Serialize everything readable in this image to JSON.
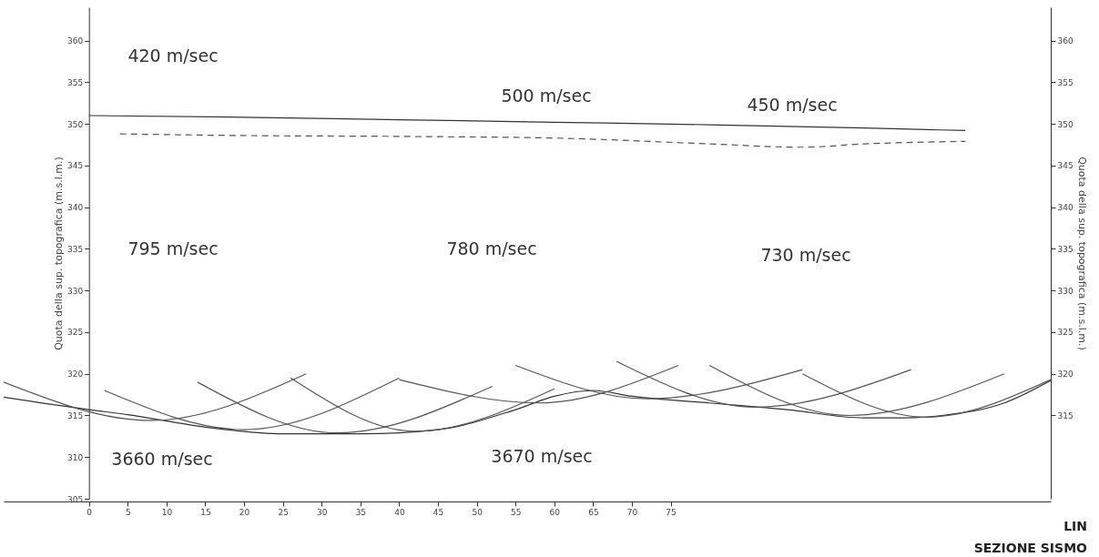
{
  "chart_data": {
    "type": "line",
    "ylabel": "Quota della sup. topografica (m.s.l.m.)",
    "y2label": "Quota della sup. topografica (m.s.l.m.)",
    "xlim": [
      -11,
      124
    ],
    "xticks": [
      0,
      5,
      10,
      15,
      20,
      25,
      30,
      35,
      40,
      45,
      50,
      55,
      60,
      65,
      70,
      75
    ],
    "ylim": [
      305,
      364
    ],
    "yticks": [
      305,
      310,
      315,
      320,
      325,
      330,
      335,
      340,
      345,
      350,
      355,
      360
    ],
    "y2lim": [
      305,
      364
    ],
    "y2ticks": [
      315,
      320,
      325,
      330,
      335,
      340,
      345,
      350,
      355,
      360
    ],
    "grid": false,
    "marker": "none",
    "series": [
      {
        "color": "#333333",
        "line_style": "solid",
        "x": [
          0,
          20,
          40,
          60,
          80,
          100,
          113
        ],
        "values": [
          351,
          350.8,
          350.5,
          350.2,
          349.9,
          349.5,
          349.2
        ]
      },
      {
        "color": "#555555",
        "line_style": "dashed",
        "x": [
          4,
          20,
          40,
          60,
          80,
          92,
          100,
          113
        ],
        "values": [
          348.8,
          348.6,
          348.5,
          348.3,
          347.6,
          347.2,
          347.6,
          347.9
        ]
      },
      {
        "color": "#333333",
        "line_style": "solid",
        "x": [
          -11,
          0,
          5,
          15,
          25,
          35,
          45,
          55,
          60,
          65,
          70,
          80,
          90,
          100,
          105,
          110,
          118,
          124
        ],
        "values": [
          317.2,
          315.7,
          315.1,
          313.6,
          312.8,
          312.8,
          313.3,
          315.7,
          317.3,
          318,
          317.3,
          316.5,
          315.7,
          314.7,
          314.7,
          315,
          316.5,
          319.2
        ]
      },
      {
        "color": "#555555",
        "line_style": "solid",
        "x": [
          -11,
          8,
          28
        ],
        "values": [
          319,
          314.4,
          320
        ]
      },
      {
        "color": "#555555",
        "line_style": "solid",
        "x": [
          2,
          20,
          40
        ],
        "values": [
          318,
          313.3,
          319.5
        ]
      },
      {
        "color": "#555555",
        "line_style": "solid",
        "x": [
          14,
          32,
          52
        ],
        "values": [
          319,
          312.9,
          318.5
        ]
      },
      {
        "color": "#555555",
        "line_style": "solid",
        "x": [
          26,
          42,
          60
        ],
        "values": [
          319.5,
          313.1,
          318.2
        ]
      },
      {
        "color": "#555555",
        "line_style": "solid",
        "x": [
          40,
          58,
          76
        ],
        "values": [
          319.3,
          316.5,
          321
        ]
      },
      {
        "color": "#555555",
        "line_style": "solid",
        "x": [
          55,
          72,
          92
        ],
        "values": [
          321,
          317,
          320.5
        ]
      },
      {
        "color": "#555555",
        "line_style": "solid",
        "x": [
          68,
          86,
          106
        ],
        "values": [
          321.5,
          316,
          320.5
        ]
      },
      {
        "color": "#555555",
        "line_style": "solid",
        "x": [
          80,
          98,
          118
        ],
        "values": [
          321,
          315,
          320
        ]
      },
      {
        "color": "#555555",
        "line_style": "solid",
        "x": [
          92,
          108,
          124
        ],
        "values": [
          320,
          314.8,
          319.3
        ]
      }
    ],
    "annotations": [
      "420 m/sec",
      "500 m/sec",
      "450 m/sec",
      "795 m/sec",
      "780 m/sec",
      "730 m/sec",
      "3660 m/sec",
      "3670 m/sec",
      "LIN",
      "SEZIONE SISMO"
    ]
  }
}
